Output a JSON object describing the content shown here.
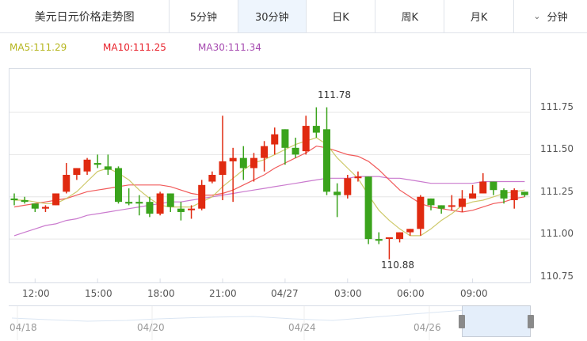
{
  "header": {
    "title": "美元日元价格走势图",
    "tabs": [
      {
        "label": "5分钟",
        "active": false
      },
      {
        "label": "30分钟",
        "active": true
      },
      {
        "label": "日K",
        "active": false
      },
      {
        "label": "周K",
        "active": false
      },
      {
        "label": "月K",
        "active": false
      }
    ],
    "dropdown": {
      "icon": "chevron-down-icon",
      "label": "分钟"
    }
  },
  "legend": {
    "ma5": "MA5:111.29",
    "ma10": "MA10:111.25",
    "ma30": "MA30:111.34"
  },
  "colors": {
    "up": "#e02a10",
    "down": "#3aa31c",
    "ma5": "#c9c35a",
    "ma10": "#f04848",
    "ma30": "#c46bc9",
    "grid": "#e6e6e6",
    "ma5_text": "#b5b51e",
    "ma10_text": "#e8202a",
    "ma30_text": "#a64ab0"
  },
  "annotations": {
    "high": "111.78",
    "low": "110.88"
  },
  "navigator": {
    "labels": [
      "04/18",
      "04/20",
      "04/24",
      "04/26"
    ]
  },
  "chart_data": {
    "type": "candlestick",
    "title": "美元日元价格走势图",
    "interval": "30分钟",
    "ylim": [
      110.72,
      111.99
    ],
    "yticks": [
      111.75,
      111.5,
      111.25,
      111.0,
      110.75
    ],
    "ytick_labels": [
      "111.75",
      "111.50",
      "111.25",
      "111.00",
      "110.75"
    ],
    "xtick_labels": [
      "12:00",
      "15:00",
      "18:00",
      "21:00",
      "04/27",
      "03:00",
      "06:00",
      "09:00"
    ],
    "xtick_index": [
      2,
      8,
      14,
      20,
      26,
      32,
      38,
      44
    ],
    "grid": true,
    "legend": [
      "MA5:111.29",
      "MA10:111.25",
      "MA30:111.34"
    ],
    "annotations": [
      {
        "text": "111.78",
        "label": "high"
      },
      {
        "text": "110.88",
        "label": "low"
      }
    ],
    "candles": [
      {
        "o": 111.24,
        "c": 111.23,
        "h": 111.27,
        "l": 111.2
      },
      {
        "o": 111.23,
        "c": 111.22,
        "h": 111.25,
        "l": 111.21
      },
      {
        "o": 111.21,
        "c": 111.18,
        "h": 111.21,
        "l": 111.16
      },
      {
        "o": 111.18,
        "c": 111.19,
        "h": 111.2,
        "l": 111.16
      },
      {
        "o": 111.2,
        "c": 111.27,
        "h": 111.27,
        "l": 111.2
      },
      {
        "o": 111.28,
        "c": 111.38,
        "h": 111.45,
        "l": 111.27
      },
      {
        "o": 111.38,
        "c": 111.42,
        "h": 111.42,
        "l": 111.35
      },
      {
        "o": 111.4,
        "c": 111.47,
        "h": 111.48,
        "l": 111.38
      },
      {
        "o": 111.45,
        "c": 111.44,
        "h": 111.5,
        "l": 111.42
      },
      {
        "o": 111.43,
        "c": 111.41,
        "h": 111.5,
        "l": 111.38
      },
      {
        "o": 111.42,
        "c": 111.22,
        "h": 111.43,
        "l": 111.21
      },
      {
        "o": 111.22,
        "c": 111.21,
        "h": 111.3,
        "l": 111.2
      },
      {
        "o": 111.22,
        "c": 111.21,
        "h": 111.26,
        "l": 111.14
      },
      {
        "o": 111.22,
        "c": 111.15,
        "h": 111.25,
        "l": 111.13
      },
      {
        "o": 111.15,
        "c": 111.27,
        "h": 111.28,
        "l": 111.14
      },
      {
        "o": 111.27,
        "c": 111.19,
        "h": 111.27,
        "l": 111.16
      },
      {
        "o": 111.18,
        "c": 111.16,
        "h": 111.22,
        "l": 111.11
      },
      {
        "o": 111.18,
        "c": 111.18,
        "h": 111.2,
        "l": 111.12
      },
      {
        "o": 111.18,
        "c": 111.32,
        "h": 111.35,
        "l": 111.17
      },
      {
        "o": 111.34,
        "c": 111.38,
        "h": 111.4,
        "l": 111.33
      },
      {
        "o": 111.38,
        "c": 111.46,
        "h": 111.73,
        "l": 111.23
      },
      {
        "o": 111.46,
        "c": 111.48,
        "h": 111.54,
        "l": 111.22
      },
      {
        "o": 111.48,
        "c": 111.42,
        "h": 111.55,
        "l": 111.35
      },
      {
        "o": 111.42,
        "c": 111.48,
        "h": 111.51,
        "l": 111.34
      },
      {
        "o": 111.48,
        "c": 111.55,
        "h": 111.58,
        "l": 111.4
      },
      {
        "o": 111.56,
        "c": 111.62,
        "h": 111.66,
        "l": 111.5
      },
      {
        "o": 111.65,
        "c": 111.54,
        "h": 111.65,
        "l": 111.44
      },
      {
        "o": 111.54,
        "c": 111.5,
        "h": 111.6,
        "l": 111.48
      },
      {
        "o": 111.52,
        "c": 111.67,
        "h": 111.73,
        "l": 111.5
      },
      {
        "o": 111.67,
        "c": 111.63,
        "h": 111.78,
        "l": 111.6
      },
      {
        "o": 111.65,
        "c": 111.28,
        "h": 111.78,
        "l": 111.26
      },
      {
        "o": 111.28,
        "c": 111.26,
        "h": 111.33,
        "l": 111.13
      },
      {
        "o": 111.26,
        "c": 111.36,
        "h": 111.38,
        "l": 111.24
      },
      {
        "o": 111.36,
        "c": 111.37,
        "h": 111.4,
        "l": 111.34
      },
      {
        "o": 111.37,
        "c": 111.0,
        "h": 111.37,
        "l": 110.97
      },
      {
        "o": 111.0,
        "c": 110.99,
        "h": 111.04,
        "l": 110.97
      },
      {
        "o": 111.01,
        "c": 111.01,
        "h": 111.01,
        "l": 110.88
      },
      {
        "o": 111.0,
        "c": 111.04,
        "h": 111.04,
        "l": 110.98
      },
      {
        "o": 111.04,
        "c": 111.06,
        "h": 111.06,
        "l": 111.02
      },
      {
        "o": 111.06,
        "c": 111.25,
        "h": 111.26,
        "l": 111.02
      },
      {
        "o": 111.24,
        "c": 111.2,
        "h": 111.24,
        "l": 111.17
      },
      {
        "o": 111.2,
        "c": 111.18,
        "h": 111.2,
        "l": 111.15
      },
      {
        "o": 111.2,
        "c": 111.2,
        "h": 111.26,
        "l": 111.17
      },
      {
        "o": 111.19,
        "c": 111.24,
        "h": 111.29,
        "l": 111.16
      },
      {
        "o": 111.24,
        "c": 111.27,
        "h": 111.32,
        "l": 111.24
      },
      {
        "o": 111.27,
        "c": 111.34,
        "h": 111.39,
        "l": 111.27
      },
      {
        "o": 111.34,
        "c": 111.29,
        "h": 111.34,
        "l": 111.26
      },
      {
        "o": 111.29,
        "c": 111.24,
        "h": 111.3,
        "l": 111.21
      },
      {
        "o": 111.23,
        "c": 111.29,
        "h": 111.3,
        "l": 111.18
      },
      {
        "o": 111.28,
        "c": 111.26,
        "h": 111.28,
        "l": 111.25
      }
    ],
    "ma5": [
      111.23,
      111.23,
      111.22,
      111.21,
      111.21,
      111.24,
      111.28,
      111.34,
      111.4,
      111.42,
      111.39,
      111.35,
      111.29,
      111.24,
      111.2,
      111.19,
      111.19,
      111.19,
      111.22,
      111.25,
      111.31,
      111.36,
      111.41,
      111.45,
      111.47,
      111.5,
      111.53,
      111.56,
      111.58,
      111.6,
      111.56,
      111.48,
      111.42,
      111.36,
      111.26,
      111.17,
      111.11,
      111.06,
      111.02,
      111.02,
      111.06,
      111.11,
      111.15,
      111.2,
      111.22,
      111.23,
      111.25,
      111.27,
      111.28,
      111.29
    ],
    "ma10": [
      111.19,
      111.2,
      111.21,
      111.22,
      111.23,
      111.24,
      111.26,
      111.28,
      111.29,
      111.3,
      111.31,
      111.32,
      111.32,
      111.32,
      111.32,
      111.31,
      111.29,
      111.27,
      111.26,
      111.26,
      111.27,
      111.29,
      111.32,
      111.35,
      111.38,
      111.42,
      111.45,
      111.48,
      111.51,
      111.55,
      111.54,
      111.52,
      111.5,
      111.49,
      111.46,
      111.41,
      111.35,
      111.29,
      111.25,
      111.21,
      111.19,
      111.18,
      111.17,
      111.16,
      111.17,
      111.19,
      111.21,
      111.22,
      111.24,
      111.25
    ],
    "ma30": [
      111.02,
      111.04,
      111.06,
      111.08,
      111.09,
      111.11,
      111.12,
      111.14,
      111.15,
      111.16,
      111.17,
      111.18,
      111.19,
      111.2,
      111.21,
      111.22,
      111.22,
      111.23,
      111.24,
      111.25,
      111.26,
      111.27,
      111.28,
      111.29,
      111.3,
      111.31,
      111.32,
      111.33,
      111.34,
      111.35,
      111.36,
      111.36,
      111.36,
      111.37,
      111.37,
      111.37,
      111.36,
      111.36,
      111.35,
      111.34,
      111.33,
      111.33,
      111.33,
      111.33,
      111.33,
      111.34,
      111.34,
      111.34,
      111.34,
      111.34
    ]
  }
}
